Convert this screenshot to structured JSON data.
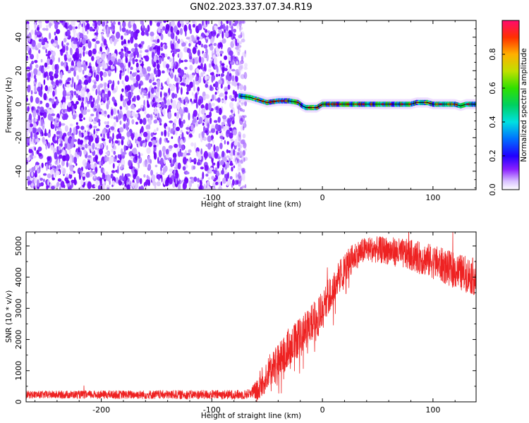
{
  "title": "GN02.2023.337.07.34.R19",
  "colors": {
    "trace": "#ee2222",
    "ridge": "#000000",
    "colormap": [
      "#ffffff",
      "#e8d8ff",
      "#b070ff",
      "#7a00ff",
      "#0000ff",
      "#0088ff",
      "#00e0e0",
      "#00d000",
      "#a0e000",
      "#ffd000",
      "#ff7000",
      "#ff0000",
      "#ff1060"
    ]
  },
  "chart_data": [
    {
      "type": "heatmap",
      "name": "spectrogram",
      "xlabel": "Height of straight line (km)",
      "ylabel": "Frequency (Hz)",
      "xlim": [
        -268,
        139
      ],
      "ylim": [
        -51,
        50
      ],
      "xticks": [
        -200,
        -100,
        0,
        100
      ],
      "yticks": [
        -40,
        -20,
        0,
        20,
        40
      ],
      "xtick_labels": [
        "-200",
        "-100",
        "0",
        "100"
      ],
      "ytick_labels": [
        "-40",
        "-20",
        "0",
        "20",
        "40"
      ],
      "noise_region_x": [
        -268,
        -73
      ],
      "ridge": {
        "x": [
          -75,
          -65,
          -60,
          -55,
          -50,
          -40,
          -30,
          -22,
          -18,
          -15,
          -10,
          -5,
          0,
          5,
          20,
          40,
          60,
          80,
          85,
          90,
          95,
          100,
          110,
          120,
          125,
          130,
          139
        ],
        "y": [
          5,
          4,
          3,
          2,
          1,
          2,
          2,
          1,
          -1,
          -2,
          -2,
          -2,
          0,
          0,
          0,
          0,
          0,
          0,
          1,
          1,
          1,
          0,
          0,
          0,
          -1,
          0,
          0
        ]
      },
      "colorbar": {
        "label": "Normalized spectral amplitude",
        "range": [
          0,
          1
        ],
        "ticks": [
          0.0,
          0.2,
          0.4,
          0.6,
          0.8
        ],
        "tick_labels": [
          "0.0",
          "0.2",
          "0.4",
          "0.6",
          "0.8"
        ]
      }
    },
    {
      "type": "line",
      "name": "snr",
      "xlabel": "Height of straight line (km)",
      "ylabel": "SNR (10 * v/v)",
      "xlim": [
        -268,
        139
      ],
      "ylim": [
        0,
        5450
      ],
      "xticks": [
        -200,
        -100,
        0,
        100
      ],
      "yticks": [
        0,
        1000,
        2000,
        3000,
        4000,
        5000
      ],
      "xtick_labels": [
        "-200",
        "-100",
        "0",
        "100"
      ],
      "ytick_labels": [
        "0",
        "1000",
        "2000",
        "3000",
        "4000",
        "5000"
      ],
      "envelope": {
        "x": [
          -268,
          -80,
          -70,
          -60,
          -50,
          -40,
          -30,
          -20,
          -10,
          0,
          10,
          20,
          30,
          40,
          60,
          80,
          100,
          120,
          139
        ],
        "y": [
          230,
          230,
          230,
          350,
          900,
          1300,
          1800,
          2100,
          2500,
          3000,
          3700,
          4300,
          4700,
          4900,
          4850,
          4700,
          4500,
          4200,
          4000
        ]
      },
      "noise_amplitude": {
        "x": [
          -268,
          -65,
          -55,
          -30,
          0,
          20,
          40,
          100,
          139
        ],
        "y": [
          120,
          150,
          500,
          600,
          600,
          500,
          400,
          550,
          600
        ]
      }
    }
  ]
}
